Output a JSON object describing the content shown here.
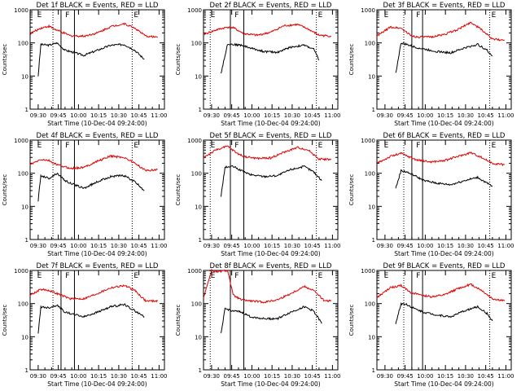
{
  "shared": {
    "ylabel": "Counts/sec",
    "xlabel": "Start Time (10-Dec-04 09:24:00)",
    "x_ticks": [
      "09:30",
      "09:45",
      "10:00",
      "10:15",
      "10:30",
      "10:45",
      "11:00"
    ],
    "y_ticks": [
      "1",
      "10",
      "100",
      "1000"
    ],
    "markers": {
      "E": "E",
      "F": "F"
    },
    "colors": {
      "events": "#000000",
      "lld": "#e00000",
      "axes": "#000000"
    }
  },
  "chart_data": [
    {
      "type": "line",
      "title": "Det 1f BLACK = Events, RED = LLD",
      "x_unit": "minutes since 09:24",
      "ylim": [
        1,
        1000
      ],
      "y_scale": "log",
      "xlim": [
        0,
        100
      ],
      "series": [
        {
          "name": "Events",
          "color": "#000000",
          "x": [
            6,
            8,
            14,
            20,
            26,
            30,
            40,
            50,
            60,
            70,
            78,
            85
          ],
          "values": [
            10,
            90,
            85,
            100,
            60,
            55,
            42,
            60,
            85,
            90,
            60,
            32
          ]
        },
        {
          "name": "LLD",
          "color": "#e00000",
          "x": [
            0,
            8,
            14,
            20,
            30,
            40,
            50,
            60,
            70,
            78,
            86,
            95
          ],
          "values": [
            190,
            280,
            320,
            240,
            165,
            160,
            200,
            310,
            380,
            280,
            160,
            150
          ]
        }
      ],
      "vlines_dotted": [
        17,
        76
      ],
      "vlines_solid": [
        23,
        33
      ],
      "E_pos": [
        4,
        76
      ],
      "F_pos": [
        25
      ]
    },
    {
      "type": "line",
      "title": "Det 2f BLACK = Events, RED = LLD",
      "x_unit": "minutes since 09:24",
      "ylim": [
        1,
        1000
      ],
      "y_scale": "log",
      "xlim": [
        0,
        100
      ],
      "series": [
        {
          "name": "Events",
          "color": "#000000",
          "x": [
            13,
            18,
            22,
            28,
            35,
            45,
            55,
            65,
            75,
            82,
            86
          ],
          "values": [
            12,
            95,
            90,
            85,
            70,
            55,
            52,
            75,
            85,
            65,
            30
          ]
        },
        {
          "name": "LLD",
          "color": "#e00000",
          "x": [
            0,
            10,
            18,
            22,
            30,
            40,
            50,
            60,
            70,
            78,
            86,
            95
          ],
          "values": [
            180,
            250,
            300,
            290,
            190,
            170,
            210,
            330,
            360,
            260,
            170,
            160
          ]
        }
      ],
      "vlines_dotted": [
        5,
        84
      ],
      "vlines_solid": [
        20,
        30
      ],
      "E_pos": [
        4,
        84
      ],
      "F_pos": [
        22
      ]
    },
    {
      "type": "line",
      "title": "Det 3f BLACK = Events, RED = LLD",
      "x_unit": "minutes since 09:24",
      "ylim": [
        1,
        1000
      ],
      "y_scale": "log",
      "xlim": [
        0,
        100
      ],
      "series": [
        {
          "name": "Events",
          "color": "#000000",
          "x": [
            14,
            18,
            22,
            28,
            35,
            45,
            55,
            65,
            75,
            82,
            86
          ],
          "values": [
            12,
            100,
            90,
            75,
            65,
            55,
            50,
            70,
            90,
            60,
            40
          ]
        },
        {
          "name": "LLD",
          "color": "#e00000",
          "x": [
            0,
            10,
            18,
            25,
            30,
            40,
            50,
            60,
            70,
            78,
            86,
            95
          ],
          "values": [
            160,
            300,
            280,
            170,
            150,
            150,
            180,
            250,
            420,
            250,
            130,
            120
          ]
        }
      ],
      "vlines_dotted": [
        20,
        84
      ],
      "vlines_solid": [
        26,
        34
      ],
      "E_pos": [
        4,
        84
      ],
      "F_pos": [
        28
      ]
    },
    {
      "type": "line",
      "title": "Det 4f BLACK = Events, RED = LLD",
      "x_unit": "minutes since 09:24",
      "ylim": [
        1,
        1000
      ],
      "y_scale": "log",
      "xlim": [
        0,
        100
      ],
      "series": [
        {
          "name": "Events",
          "color": "#000000",
          "x": [
            6,
            8,
            14,
            20,
            26,
            30,
            40,
            50,
            60,
            70,
            78,
            85
          ],
          "values": [
            15,
            85,
            70,
            100,
            60,
            50,
            35,
            55,
            80,
            85,
            55,
            30
          ]
        },
        {
          "name": "LLD",
          "color": "#e00000",
          "x": [
            0,
            8,
            14,
            20,
            30,
            40,
            50,
            60,
            70,
            78,
            86,
            95
          ],
          "values": [
            180,
            260,
            240,
            180,
            140,
            150,
            230,
            330,
            300,
            200,
            120,
            130
          ]
        }
      ],
      "vlines_dotted": [
        17,
        76
      ],
      "vlines_solid": [
        23,
        33
      ],
      "E_pos": [
        4,
        76
      ],
      "F_pos": [
        25
      ]
    },
    {
      "type": "line",
      "title": "Det 5f BLACK = Events, RED = LLD",
      "x_unit": "minutes since 09:24",
      "ylim": [
        1,
        1000
      ],
      "y_scale": "log",
      "xlim": [
        0,
        100
      ],
      "series": [
        {
          "name": "Events",
          "color": "#000000",
          "x": [
            13,
            16,
            22,
            28,
            35,
            45,
            55,
            65,
            75,
            82,
            88
          ],
          "values": [
            20,
            150,
            160,
            120,
            90,
            80,
            85,
            130,
            160,
            110,
            60
          ]
        },
        {
          "name": "LLD",
          "color": "#e00000",
          "x": [
            0,
            10,
            18,
            25,
            30,
            40,
            50,
            60,
            70,
            78,
            86,
            95
          ],
          "values": [
            300,
            520,
            650,
            400,
            320,
            280,
            290,
            430,
            600,
            500,
            270,
            260
          ]
        }
      ],
      "vlines_dotted": [
        5,
        84
      ],
      "vlines_solid": [
        20,
        30
      ],
      "E_pos": [
        4,
        84
      ],
      "F_pos": [
        22
      ]
    },
    {
      "type": "line",
      "title": "Det 6f BLACK = Events, RED = LLD",
      "x_unit": "minutes since 09:24",
      "ylim": [
        1,
        1000
      ],
      "y_scale": "log",
      "xlim": [
        0,
        100
      ],
      "series": [
        {
          "name": "Events",
          "color": "#000000",
          "x": [
            14,
            18,
            22,
            28,
            35,
            45,
            55,
            65,
            75,
            82,
            86
          ],
          "values": [
            35,
            120,
            110,
            85,
            60,
            50,
            45,
            60,
            75,
            50,
            40
          ]
        },
        {
          "name": "LLD",
          "color": "#e00000",
          "x": [
            0,
            10,
            18,
            25,
            30,
            40,
            50,
            60,
            70,
            78,
            86,
            95
          ],
          "values": [
            200,
            320,
            400,
            300,
            250,
            220,
            240,
            320,
            420,
            300,
            200,
            180
          ]
        }
      ],
      "vlines_dotted": [
        20,
        84
      ],
      "vlines_solid": [
        26,
        34
      ],
      "E_pos": [
        4,
        84
      ],
      "F_pos": [
        28
      ]
    },
    {
      "type": "line",
      "title": "Det 7f BLACK = Events, RED = LLD",
      "x_unit": "minutes since 09:24",
      "ylim": [
        1,
        1000
      ],
      "y_scale": "log",
      "xlim": [
        0,
        100
      ],
      "series": [
        {
          "name": "Events",
          "color": "#000000",
          "x": [
            6,
            8,
            14,
            20,
            26,
            30,
            40,
            50,
            60,
            70,
            78,
            85
          ],
          "values": [
            12,
            80,
            75,
            90,
            55,
            50,
            40,
            55,
            80,
            95,
            60,
            40
          ]
        },
        {
          "name": "LLD",
          "color": "#e00000",
          "x": [
            0,
            8,
            14,
            20,
            30,
            40,
            50,
            60,
            70,
            78,
            86,
            95
          ],
          "values": [
            180,
            270,
            250,
            200,
            140,
            140,
            200,
            300,
            350,
            250,
            120,
            120
          ]
        }
      ],
      "vlines_dotted": [
        17,
        76
      ],
      "vlines_solid": [
        23,
        33
      ],
      "E_pos": [
        4,
        76
      ],
      "F_pos": [
        25
      ]
    },
    {
      "type": "line",
      "title": "Det 8f BLACK = Events, RED = LLD",
      "x_unit": "minutes since 09:24",
      "ylim": [
        1,
        1000
      ],
      "y_scale": "log",
      "xlim": [
        0,
        100
      ],
      "series": [
        {
          "name": "Events",
          "color": "#000000",
          "x": [
            13,
            16,
            22,
            28,
            35,
            45,
            55,
            65,
            75,
            82,
            88
          ],
          "values": [
            12,
            70,
            60,
            55,
            40,
            35,
            35,
            55,
            80,
            60,
            25
          ]
        },
        {
          "name": "LLD",
          "color": "#e00000",
          "x": [
            0,
            6,
            10,
            18,
            22,
            28,
            35,
            45,
            55,
            65,
            75,
            82,
            90,
            95
          ],
          "values": [
            150,
            1000,
            900,
            1000,
            180,
            130,
            120,
            110,
            130,
            200,
            330,
            250,
            120,
            120
          ]
        }
      ],
      "vlines_dotted": [
        5,
        84
      ],
      "vlines_solid": [
        20,
        30
      ],
      "E_pos": [
        4,
        84
      ],
      "F_pos": [
        22
      ]
    },
    {
      "type": "line",
      "title": "Det 9f BLACK = Events, RED = LLD",
      "x_unit": "minutes since 09:24",
      "ylim": [
        1,
        1000
      ],
      "y_scale": "log",
      "xlim": [
        0,
        100
      ],
      "series": [
        {
          "name": "Events",
          "color": "#000000",
          "x": [
            14,
            18,
            22,
            28,
            35,
            45,
            55,
            65,
            75,
            82,
            86
          ],
          "values": [
            25,
            100,
            95,
            70,
            55,
            45,
            40,
            60,
            80,
            50,
            30
          ]
        },
        {
          "name": "LLD",
          "color": "#e00000",
          "x": [
            0,
            10,
            18,
            25,
            30,
            40,
            50,
            60,
            70,
            78,
            86,
            95
          ],
          "values": [
            150,
            300,
            350,
            220,
            190,
            160,
            180,
            280,
            380,
            250,
            140,
            120
          ]
        }
      ],
      "vlines_dotted": [
        20,
        84
      ],
      "vlines_solid": [
        26,
        34
      ],
      "E_pos": [
        4,
        84
      ],
      "F_pos": [
        28
      ]
    }
  ]
}
